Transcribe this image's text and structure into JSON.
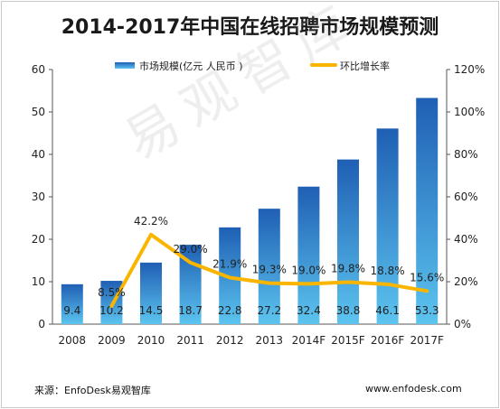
{
  "chart_data": {
    "type": "bar",
    "title": "2014-2017年中国在线招聘市场规模预测",
    "categories": [
      "2008",
      "2009",
      "2010",
      "2011",
      "2012",
      "2013",
      "2014F",
      "2015F",
      "2016F",
      "2017F"
    ],
    "series": [
      {
        "name": "市场规模(亿元 人民币 )",
        "type": "bar",
        "axis": "left",
        "values": [
          9.4,
          10.2,
          14.5,
          18.7,
          22.8,
          27.2,
          32.4,
          38.8,
          46.1,
          53.3
        ]
      },
      {
        "name": "环比增长率",
        "type": "line",
        "axis": "right",
        "values": [
          null,
          8.5,
          42.2,
          29.0,
          21.9,
          19.3,
          19.0,
          19.8,
          18.8,
          15.6
        ],
        "labels": [
          "",
          "8.5%",
          "42.2%",
          "29.0%",
          "21.9%",
          "19.3%",
          "19.0%",
          "19.8%",
          "18.8%",
          "15.6%"
        ]
      }
    ],
    "y_left": {
      "min": 0,
      "max": 60,
      "ticks": [
        "0",
        "10",
        "20",
        "30",
        "40",
        "50",
        "60"
      ]
    },
    "y_right": {
      "min": 0,
      "max": 120,
      "ticks": [
        "0%",
        "20%",
        "40%",
        "60%",
        "80%",
        "100%",
        "120%"
      ]
    },
    "legend_position": "top",
    "grid": false,
    "colors": {
      "bar_top": "#1f5fb4",
      "bar_bottom": "#5cc4ef",
      "line": "#f9b500"
    }
  },
  "footer": {
    "source": "来源：EnfoDesk易观智库",
    "website": "www.enfodesk.com"
  },
  "watermark": "易观智库"
}
